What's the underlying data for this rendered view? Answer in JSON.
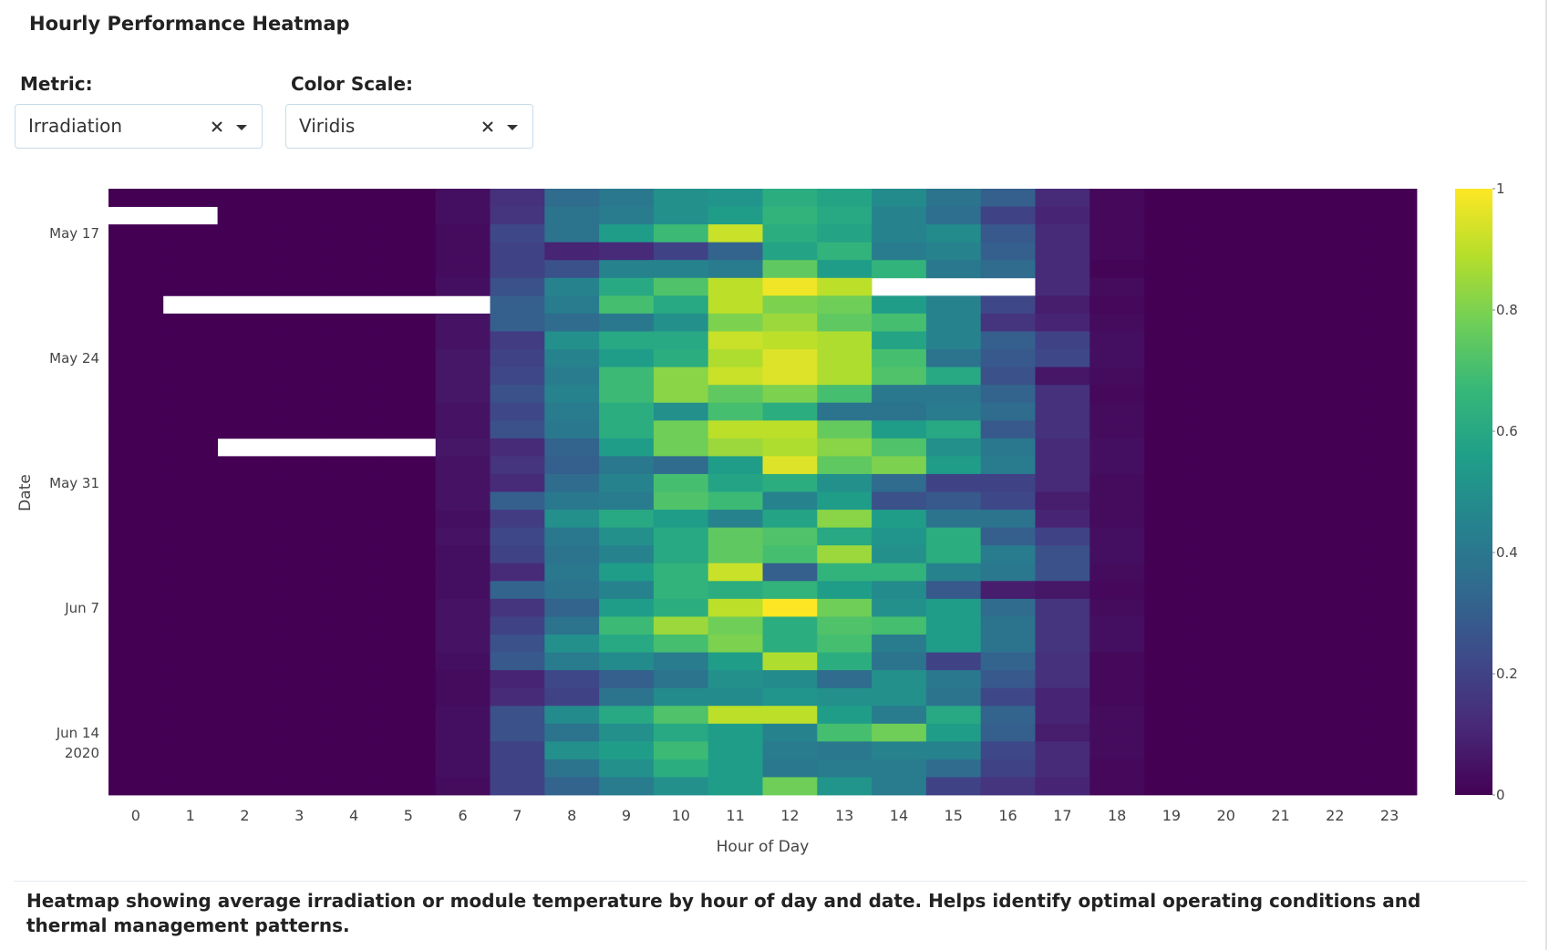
{
  "header": {
    "title": "Hourly Performance Heatmap"
  },
  "controls": [
    {
      "label": "Metric:",
      "value": "Irradiation"
    },
    {
      "label": "Color Scale:",
      "value": "Viridis"
    }
  ],
  "chart_data": {
    "type": "heatmap",
    "xaxis_title": "Hour of Day",
    "yaxis_title": "Date",
    "x": [
      0,
      1,
      2,
      3,
      4,
      5,
      6,
      7,
      8,
      9,
      10,
      11,
      12,
      13,
      14,
      15,
      16,
      17,
      18,
      19,
      20,
      21,
      22,
      23
    ],
    "xlim": [
      -0.5,
      23.5
    ],
    "xticks": [
      0,
      1,
      2,
      3,
      4,
      5,
      6,
      7,
      8,
      9,
      10,
      11,
      12,
      13,
      14,
      15,
      16,
      17,
      18,
      19,
      20,
      21,
      22,
      23
    ],
    "y": [
      "2020-05-15",
      "2020-05-16",
      "2020-05-17",
      "2020-05-18",
      "2020-05-19",
      "2020-05-20",
      "2020-05-21",
      "2020-05-22",
      "2020-05-23",
      "2020-05-24",
      "2020-05-25",
      "2020-05-26",
      "2020-05-27",
      "2020-05-28",
      "2020-05-29",
      "2020-05-30",
      "2020-05-31",
      "2020-06-01",
      "2020-06-02",
      "2020-06-03",
      "2020-06-04",
      "2020-06-05",
      "2020-06-06",
      "2020-06-07",
      "2020-06-08",
      "2020-06-09",
      "2020-06-10",
      "2020-06-11",
      "2020-06-12",
      "2020-06-13",
      "2020-06-14",
      "2020-06-15",
      "2020-06-16",
      "2020-06-17"
    ],
    "ylim": [
      "2020-05-14T12:00",
      "2020-06-17T12:00"
    ],
    "y_reversed": true,
    "yticks": [
      {
        "value": "2020-05-17",
        "label": "May 17"
      },
      {
        "value": "2020-05-24",
        "label": "May 24"
      },
      {
        "value": "2020-05-31",
        "label": "May 31"
      },
      {
        "value": "2020-06-07",
        "label": "Jun 7"
      },
      {
        "value": "2020-06-14",
        "label": "Jun 14\n2020"
      }
    ],
    "zlim": [
      0,
      1
    ],
    "zticks": [
      0,
      0.2,
      0.4,
      0.6,
      0.8,
      1
    ],
    "z": [
      [
        0,
        0,
        0,
        0,
        0,
        0,
        0.04,
        0.14,
        0.35,
        0.4,
        0.5,
        0.52,
        0.62,
        0.58,
        0.48,
        0.38,
        0.3,
        0.12,
        0.02,
        0,
        0,
        0,
        0,
        0
      ],
      [
        null,
        null,
        0,
        0,
        0,
        0,
        0.04,
        0.15,
        0.38,
        0.42,
        0.5,
        0.55,
        0.65,
        0.6,
        0.45,
        0.36,
        0.2,
        0.1,
        0.02,
        0,
        0,
        0,
        0,
        0
      ],
      [
        0,
        0,
        0,
        0,
        0,
        0,
        0.03,
        0.22,
        0.38,
        0.55,
        0.68,
        0.92,
        0.62,
        0.58,
        0.45,
        0.48,
        0.28,
        0.12,
        0.02,
        0,
        0,
        0,
        0,
        0
      ],
      [
        0,
        0,
        0,
        0,
        0,
        0,
        0.03,
        0.2,
        0.1,
        0.12,
        0.2,
        0.32,
        0.58,
        0.65,
        0.42,
        0.45,
        0.3,
        0.12,
        0.02,
        0,
        0,
        0,
        0,
        0
      ],
      [
        0,
        0,
        0,
        0,
        0,
        0,
        0.03,
        0.2,
        0.25,
        0.45,
        0.45,
        0.42,
        0.75,
        0.55,
        0.65,
        0.4,
        0.35,
        0.12,
        0.01,
        0,
        0,
        0,
        0,
        0
      ],
      [
        0,
        0,
        0,
        0,
        0,
        0,
        0.04,
        0.25,
        0.45,
        0.6,
        0.72,
        0.9,
        0.98,
        0.9,
        null,
        null,
        null,
        0.12,
        0.03,
        0,
        0,
        0,
        0,
        0
      ],
      [
        0,
        null,
        null,
        null,
        null,
        null,
        null,
        0.3,
        0.42,
        0.7,
        0.6,
        0.9,
        0.8,
        0.78,
        0.55,
        0.45,
        0.22,
        0.08,
        0.02,
        0,
        0,
        0,
        0,
        0
      ],
      [
        0,
        0,
        0,
        0,
        0,
        0,
        0.05,
        0.3,
        0.35,
        0.4,
        0.5,
        0.8,
        0.85,
        0.75,
        0.7,
        0.45,
        0.15,
        0.1,
        0.03,
        0,
        0,
        0,
        0,
        0
      ],
      [
        0,
        0,
        0,
        0,
        0,
        0,
        0.05,
        0.18,
        0.5,
        0.6,
        0.6,
        0.92,
        0.9,
        0.88,
        0.58,
        0.45,
        0.3,
        0.2,
        0.04,
        0,
        0,
        0,
        0,
        0
      ],
      [
        0,
        0,
        0,
        0,
        0,
        0,
        0.06,
        0.2,
        0.45,
        0.55,
        0.62,
        0.88,
        0.95,
        0.88,
        0.7,
        0.38,
        0.28,
        0.22,
        0.04,
        0,
        0,
        0,
        0,
        0
      ],
      [
        0,
        0,
        0,
        0,
        0,
        0,
        0.06,
        0.22,
        0.42,
        0.68,
        0.82,
        0.92,
        0.95,
        0.88,
        0.72,
        0.6,
        0.25,
        0.06,
        0.03,
        0,
        0,
        0,
        0,
        0
      ],
      [
        0,
        0,
        0,
        0,
        0,
        0,
        0.06,
        0.25,
        0.45,
        0.68,
        0.82,
        0.75,
        0.8,
        0.7,
        0.4,
        0.4,
        0.32,
        0.14,
        0.02,
        0,
        0,
        0,
        0,
        0
      ],
      [
        0,
        0,
        0,
        0,
        0,
        0,
        0.05,
        0.22,
        0.42,
        0.62,
        0.5,
        0.7,
        0.62,
        0.38,
        0.38,
        0.42,
        0.35,
        0.14,
        0.03,
        0,
        0,
        0,
        0,
        0
      ],
      [
        0,
        0,
        0,
        0,
        0,
        0,
        0.05,
        0.25,
        0.4,
        0.62,
        0.78,
        0.9,
        0.9,
        0.76,
        0.55,
        0.6,
        0.28,
        0.14,
        0.03,
        0,
        0,
        0,
        0,
        0
      ],
      [
        0,
        0,
        null,
        null,
        null,
        null,
        0.06,
        0.12,
        0.32,
        0.55,
        0.78,
        0.85,
        0.88,
        0.82,
        0.72,
        0.5,
        0.4,
        0.12,
        0.04,
        0,
        0,
        0,
        0,
        0
      ],
      [
        0,
        0,
        0,
        0,
        0,
        0,
        0.05,
        0.15,
        0.3,
        0.4,
        0.35,
        0.55,
        0.95,
        0.75,
        0.8,
        0.55,
        0.42,
        0.12,
        0.04,
        0,
        0,
        0,
        0,
        0
      ],
      [
        0,
        0,
        0,
        0,
        0,
        0,
        0.05,
        0.12,
        0.35,
        0.45,
        0.7,
        0.58,
        0.62,
        0.5,
        0.35,
        0.2,
        0.2,
        0.12,
        0.03,
        0,
        0,
        0,
        0,
        0
      ],
      [
        0,
        0,
        0,
        0,
        0,
        0,
        0.05,
        0.3,
        0.4,
        0.42,
        0.72,
        0.68,
        0.45,
        0.55,
        0.25,
        0.28,
        0.22,
        0.08,
        0.03,
        0,
        0,
        0,
        0,
        0
      ],
      [
        0,
        0,
        0,
        0,
        0,
        0,
        0.04,
        0.18,
        0.5,
        0.6,
        0.55,
        0.45,
        0.58,
        0.82,
        0.55,
        0.38,
        0.38,
        0.1,
        0.03,
        0,
        0,
        0,
        0,
        0
      ],
      [
        0,
        0,
        0,
        0,
        0,
        0,
        0.05,
        0.22,
        0.4,
        0.5,
        0.6,
        0.75,
        0.72,
        0.6,
        0.52,
        0.62,
        0.3,
        0.2,
        0.04,
        0,
        0,
        0,
        0,
        0
      ],
      [
        0,
        0,
        0,
        0,
        0,
        0,
        0.04,
        0.2,
        0.38,
        0.45,
        0.6,
        0.75,
        0.7,
        0.85,
        0.5,
        0.62,
        0.42,
        0.25,
        0.04,
        0,
        0,
        0,
        0,
        0
      ],
      [
        0,
        0,
        0,
        0,
        0,
        0,
        0.04,
        0.12,
        0.4,
        0.55,
        0.65,
        0.92,
        0.3,
        0.65,
        0.65,
        0.45,
        0.4,
        0.25,
        0.03,
        0,
        0,
        0,
        0,
        0
      ],
      [
        0,
        0,
        0,
        0,
        0,
        0,
        0.04,
        0.32,
        0.38,
        0.45,
        0.65,
        0.62,
        0.65,
        0.55,
        0.48,
        0.28,
        0.08,
        0.06,
        0.02,
        0,
        0,
        0,
        0,
        0
      ],
      [
        0,
        0,
        0,
        0,
        0,
        0,
        0.05,
        0.15,
        0.32,
        0.55,
        0.62,
        0.9,
        1.0,
        0.78,
        0.5,
        0.55,
        0.35,
        0.15,
        0.03,
        0,
        0,
        0,
        0,
        0
      ],
      [
        0,
        0,
        0,
        0,
        0,
        0,
        0.05,
        0.2,
        0.38,
        0.68,
        0.85,
        0.78,
        0.62,
        0.72,
        0.7,
        0.55,
        0.38,
        0.15,
        0.04,
        0,
        0,
        0,
        0,
        0
      ],
      [
        0,
        0,
        0,
        0,
        0,
        0,
        0.05,
        0.25,
        0.5,
        0.6,
        0.7,
        0.8,
        0.62,
        0.7,
        0.42,
        0.55,
        0.38,
        0.15,
        0.04,
        0,
        0,
        0,
        0,
        0
      ],
      [
        0,
        0,
        0,
        0,
        0,
        0,
        0.04,
        0.28,
        0.42,
        0.48,
        0.42,
        0.55,
        0.88,
        0.62,
        0.38,
        0.2,
        0.32,
        0.14,
        0.02,
        0,
        0,
        0,
        0,
        0
      ],
      [
        0,
        0,
        0,
        0,
        0,
        0,
        0.03,
        0.1,
        0.22,
        0.3,
        0.38,
        0.5,
        0.48,
        0.35,
        0.5,
        0.4,
        0.28,
        0.14,
        0.02,
        0,
        0,
        0,
        0,
        0
      ],
      [
        0,
        0,
        0,
        0,
        0,
        0,
        0.03,
        0.12,
        0.2,
        0.38,
        0.48,
        0.48,
        0.52,
        0.5,
        0.5,
        0.38,
        0.22,
        0.1,
        0.02,
        0,
        0,
        0,
        0,
        0
      ],
      [
        0,
        0,
        0,
        0,
        0,
        0,
        0.04,
        0.25,
        0.48,
        0.6,
        0.72,
        0.9,
        0.9,
        0.55,
        0.42,
        0.6,
        0.32,
        0.1,
        0.03,
        0,
        0,
        0,
        0,
        0
      ],
      [
        0,
        0,
        0,
        0,
        0,
        0,
        0.04,
        0.25,
        0.38,
        0.5,
        0.6,
        0.55,
        0.45,
        0.7,
        0.78,
        0.55,
        0.3,
        0.08,
        0.03,
        0,
        0,
        0,
        0,
        0
      ],
      [
        0,
        0,
        0,
        0,
        0,
        0,
        0.04,
        0.2,
        0.5,
        0.55,
        0.68,
        0.55,
        0.42,
        0.4,
        0.45,
        0.45,
        0.22,
        0.12,
        0.03,
        0,
        0,
        0,
        0,
        0
      ],
      [
        0,
        0,
        0,
        0,
        0,
        0,
        0.04,
        0.2,
        0.38,
        0.5,
        0.62,
        0.55,
        0.4,
        0.42,
        0.42,
        0.35,
        0.2,
        0.12,
        0.02,
        0,
        0,
        0,
        0,
        0
      ],
      [
        0,
        0,
        0,
        0,
        0,
        0,
        0.03,
        0.2,
        0.32,
        0.42,
        0.5,
        0.55,
        0.78,
        0.52,
        0.42,
        0.2,
        0.15,
        0.1,
        0.02,
        0,
        0,
        0,
        0,
        0
      ]
    ]
  },
  "footer": {
    "description": "Heatmap showing average irradiation or module temperature by hour of day and date. Helps identify optimal operating conditions and thermal management patterns."
  }
}
